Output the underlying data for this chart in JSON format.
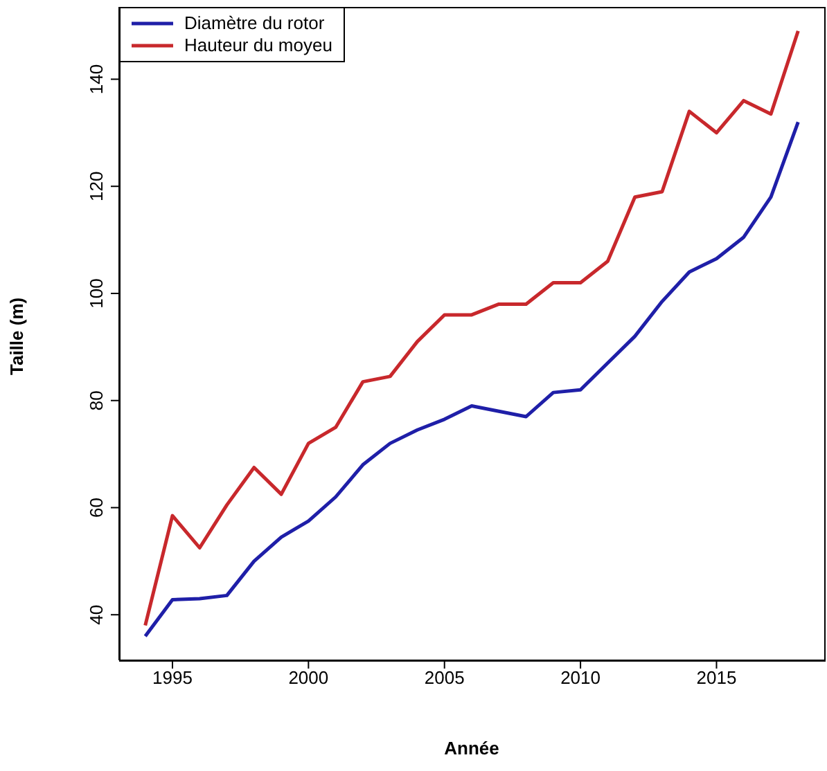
{
  "chart_data": {
    "type": "line",
    "xlabel": "Année",
    "ylabel": "Taille (m)",
    "x": [
      1994,
      1995,
      1996,
      1997,
      1998,
      1999,
      2000,
      2001,
      2002,
      2003,
      2004,
      2005,
      2006,
      2007,
      2008,
      2009,
      2010,
      2011,
      2012,
      2013,
      2014,
      2015,
      2016,
      2017,
      2018
    ],
    "series": [
      {
        "name": "Diamètre du rotor",
        "color": "#1f1fa8",
        "values": [
          36,
          42.8,
          43,
          43.6,
          50,
          54.5,
          57.5,
          62,
          68,
          72,
          74.5,
          76.5,
          79,
          78,
          77,
          81.5,
          82,
          87,
          92,
          98.5,
          104,
          106.5,
          110.5,
          118,
          132
        ]
      },
      {
        "name": "Hauteur du moyeu",
        "color": "#c8282c",
        "values": [
          38,
          58.5,
          52.5,
          60.5,
          67.5,
          62.5,
          72,
          75,
          83.5,
          84.5,
          91,
          96,
          96,
          98,
          98,
          102,
          102,
          106,
          118,
          119,
          134,
          130,
          136,
          133.5,
          149
        ]
      }
    ],
    "xlim": [
      1993.04,
      2018.96
    ],
    "xticks": [
      1995,
      2000,
      2005,
      2010,
      2015
    ],
    "ylim": [
      31.5,
      153.5
    ],
    "yticks": [
      40,
      60,
      80,
      100,
      120,
      140
    ],
    "grid": false,
    "legend": "top left",
    "marker": "none",
    "line_style": "solid"
  }
}
